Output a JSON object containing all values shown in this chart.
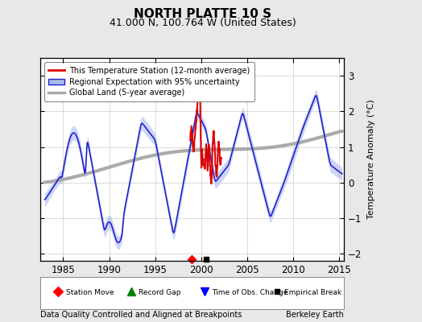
{
  "title": "NORTH PLATTE 10 S",
  "subtitle": "41.000 N, 100.764 W (United States)",
  "xlabel_left": "Data Quality Controlled and Aligned at Breakpoints",
  "xlabel_right": "Berkeley Earth",
  "ylabel": "Temperature Anomaly (°C)",
  "xlim": [
    1982.5,
    2015.5
  ],
  "ylim": [
    -2.2,
    3.5
  ],
  "yticks": [
    -2,
    -1,
    0,
    1,
    2,
    3
  ],
  "xticks": [
    1985,
    1990,
    1995,
    2000,
    2005,
    2010,
    2015
  ],
  "bg_color": "#e8e8e8",
  "plot_bg_color": "#ffffff",
  "grid_color": "#cccccc",
  "station_line_color": "#dd0000",
  "regional_line_color": "#2222cc",
  "regional_fill_color": "#aabbee",
  "global_line_color": "#aaaaaa",
  "legend_entries": [
    "This Temperature Station (12-month average)",
    "Regional Expectation with 95% uncertainty",
    "Global Land (5-year average)"
  ],
  "marker_station_move_x": 1999.0,
  "marker_obs_change_x": 2000.5,
  "marker_empirical_x": 2000.9,
  "station_data_start": 1998.8,
  "station_data_end": 2002.2
}
